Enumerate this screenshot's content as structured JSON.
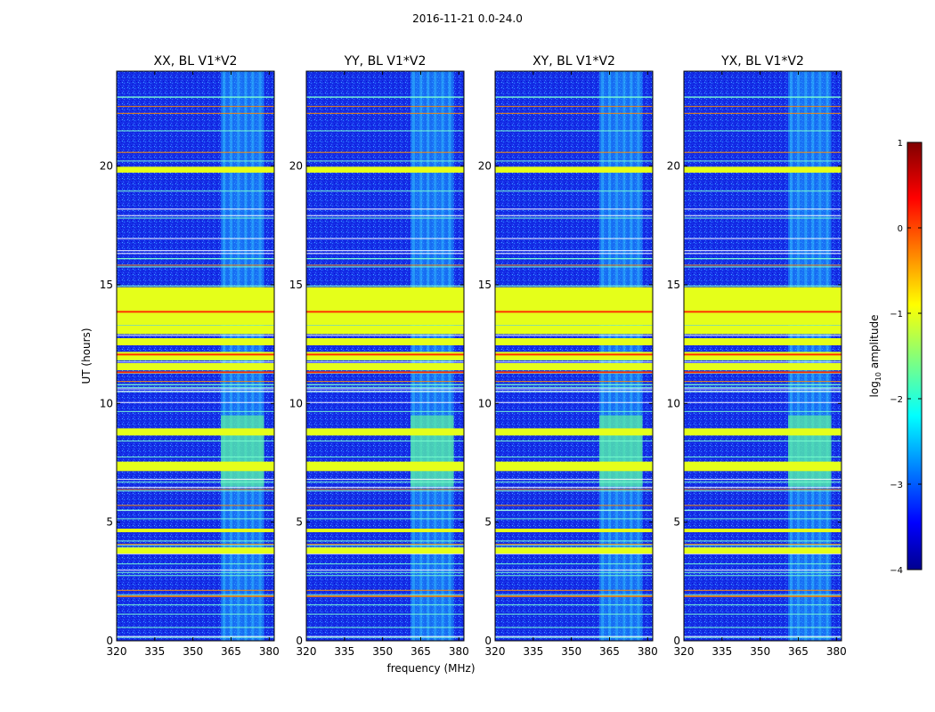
{
  "figure": {
    "suptitle": "2016-11-21 0.0-24.0",
    "xlabel": "frequency (MHz)",
    "ylabel": "UT (hours)"
  },
  "chart_data": {
    "type": "heatmap",
    "title": "2016-11-21 0.0-24.0",
    "xlabel": "frequency (MHz)",
    "ylabel": "UT (hours)",
    "xlim": [
      320,
      382
    ],
    "ylim": [
      0,
      24
    ],
    "xticks": [
      320,
      335,
      350,
      365,
      380
    ],
    "yticks": [
      0,
      5,
      10,
      15,
      20
    ],
    "panels": [
      {
        "title": "XX, BL V1*V2",
        "pol": "XX"
      },
      {
        "title": "YY, BL V1*V2",
        "pol": "YY"
      },
      {
        "title": "XY, BL V1*V2",
        "pol": "XY"
      },
      {
        "title": "YX, BL V1*V2",
        "pol": "YX"
      }
    ],
    "colorbar": {
      "label": "log10 amplitude",
      "label_base": "log",
      "label_sub": "10",
      "label_rest": " amplitude",
      "range": [
        -4,
        1
      ],
      "ticks": [
        "1",
        "0",
        "−1",
        "−2",
        "−3",
        "−4"
      ],
      "ticks_values": [
        1,
        0,
        -1,
        -2,
        -3,
        -4
      ],
      "colormap": "jet"
    },
    "rfi_band_mhz": [
      361,
      378
    ],
    "flagged_hours": [
      {
        "t": 19.85,
        "level": -1.0,
        "w": 0.25
      },
      {
        "t": 14.1,
        "level": -1.0,
        "w": 1.6
      },
      {
        "t": 13.1,
        "level": -1.0,
        "w": 0.35
      },
      {
        "t": 12.6,
        "level": -1.0,
        "w": 0.3
      },
      {
        "t": 12.0,
        "level": -1.0,
        "w": 0.35
      },
      {
        "t": 11.55,
        "level": -1.0,
        "w": 0.3
      },
      {
        "t": 8.8,
        "level": -1.0,
        "w": 0.3
      },
      {
        "t": 7.35,
        "level": -1.0,
        "w": 0.4
      },
      {
        "t": 4.65,
        "level": -1.0,
        "w": 0.15
      },
      {
        "t": 3.8,
        "level": -1.0,
        "w": 0.25
      }
    ]
  }
}
